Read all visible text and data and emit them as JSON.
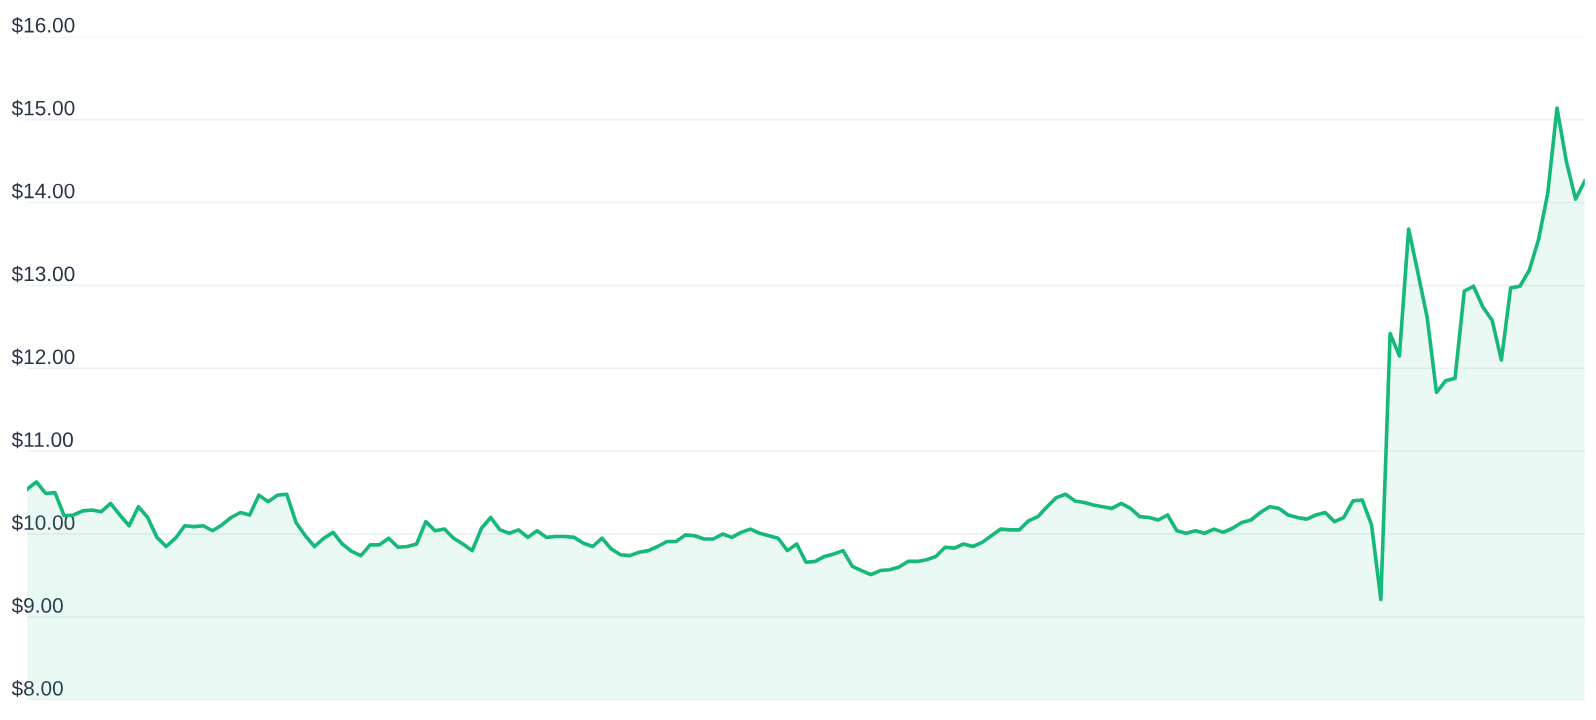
{
  "chart_data": {
    "type": "area",
    "categories": [
      null,
      null,
      null,
      null,
      null,
      null,
      null,
      null,
      null,
      null,
      null,
      null,
      null,
      null,
      null,
      null,
      null,
      null,
      null,
      null,
      null,
      null,
      null,
      null,
      null,
      null,
      null,
      null,
      null,
      null,
      null,
      null,
      null,
      null,
      null,
      null,
      null,
      null,
      null,
      null,
      null,
      null,
      null,
      null,
      null,
      null,
      null,
      null,
      null,
      null,
      null,
      null,
      null,
      null,
      null,
      null,
      null,
      null,
      null,
      null,
      null,
      null,
      null,
      null,
      null,
      null,
      null,
      null,
      null,
      null,
      null,
      null,
      null,
      null,
      null,
      null,
      null,
      null,
      null,
      null,
      null,
      null,
      null,
      null,
      null,
      null,
      null,
      null,
      null,
      null,
      null,
      null,
      null,
      null,
      null,
      null,
      null,
      null,
      null,
      null,
      null,
      null,
      null,
      null,
      null,
      null,
      null,
      null,
      null,
      null,
      null,
      null,
      null,
      null,
      null,
      null,
      null,
      null,
      null,
      null,
      null,
      null,
      null,
      null,
      null,
      null,
      null,
      null,
      null,
      null,
      null,
      null,
      null,
      null,
      null,
      null,
      null,
      null,
      null,
      null,
      null,
      null,
      null,
      null,
      null,
      null,
      null,
      null,
      null,
      null,
      null,
      null,
      null,
      null,
      null,
      null,
      null,
      null,
      null,
      null,
      null,
      null,
      null,
      null,
      null,
      null,
      null,
      null,
      null
    ],
    "series": [
      {
        "color": "#16b979",
        "values": [
          10.54,
          10.63,
          10.49,
          10.5,
          10.22,
          10.23,
          10.28,
          10.29,
          10.27,
          10.37,
          10.23,
          10.1,
          10.33,
          10.2,
          9.96,
          9.85,
          9.95,
          10.1,
          10.09,
          10.1,
          10.04,
          10.11,
          10.2,
          10.26,
          10.23,
          10.47,
          10.39,
          10.47,
          10.48,
          10.14,
          9.98,
          9.85,
          9.95,
          10.02,
          9.88,
          9.79,
          9.74,
          9.87,
          9.87,
          9.95,
          9.84,
          9.85,
          9.88,
          10.15,
          10.04,
          10.06,
          9.95,
          9.88,
          9.8,
          10.07,
          10.2,
          10.05,
          10.01,
          10.05,
          9.96,
          10.04,
          9.96,
          9.97,
          9.97,
          9.96,
          9.89,
          9.85,
          9.95,
          9.82,
          9.75,
          9.74,
          9.78,
          9.8,
          9.85,
          9.91,
          9.91,
          9.99,
          9.98,
          9.94,
          9.94,
          10.0,
          9.96,
          10.02,
          10.06,
          10.01,
          9.98,
          9.95,
          9.8,
          9.88,
          9.66,
          9.67,
          9.73,
          9.76,
          9.8,
          9.61,
          9.56,
          9.51,
          9.56,
          9.57,
          9.6,
          9.67,
          9.67,
          9.69,
          9.73,
          9.84,
          9.83,
          9.88,
          9.85,
          9.9,
          9.98,
          10.06,
          10.05,
          10.05,
          10.16,
          10.21,
          10.33,
          10.44,
          10.48,
          10.4,
          10.38,
          10.35,
          10.33,
          10.31,
          10.37,
          10.31,
          10.21,
          10.2,
          10.17,
          10.23,
          10.04,
          10.01,
          10.04,
          10.01,
          10.06,
          10.02,
          10.07,
          10.14,
          10.17,
          10.26,
          10.33,
          10.31,
          10.23,
          10.2,
          10.18,
          10.23,
          10.26,
          10.15,
          10.2,
          10.4,
          10.41,
          10.11,
          9.21,
          12.42,
          12.15,
          13.68,
          13.15,
          12.61,
          11.71,
          11.85,
          11.88,
          12.93,
          12.99,
          12.74,
          12.58,
          12.1,
          12.97,
          12.99,
          13.18,
          13.55,
          14.11,
          15.14,
          14.5,
          14.04,
          14.26
        ]
      }
    ],
    "ylim": [
      8,
      16
    ],
    "yticks": [
      {
        "value": 8,
        "label": "$8.00"
      },
      {
        "value": 9,
        "label": "$9.00"
      },
      {
        "value": 10,
        "label": "$10.00"
      },
      {
        "value": 11,
        "label": "$11.00"
      },
      {
        "value": 12,
        "label": "$12.00"
      },
      {
        "value": 13,
        "label": "$13.00"
      },
      {
        "value": 14,
        "label": "$14.00"
      },
      {
        "value": 15,
        "label": "$15.00"
      },
      {
        "value": 16,
        "label": "$16.00"
      }
    ],
    "grid": "y",
    "tick_labels": "y",
    "legend": false,
    "marker": "none",
    "line_style": "solid"
  }
}
